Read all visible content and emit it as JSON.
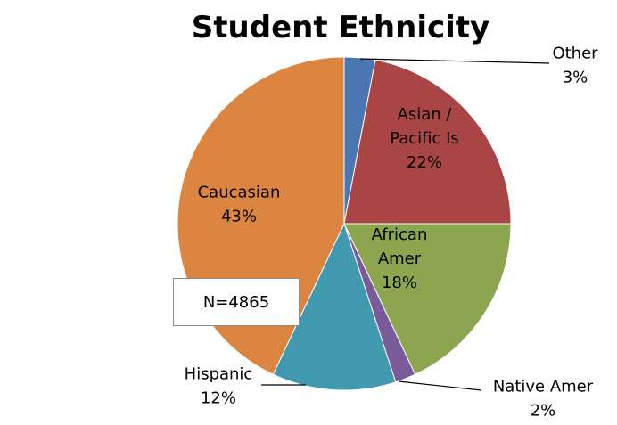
{
  "chart_data": {
    "type": "pie",
    "title": "Student Ethnicity",
    "slices": [
      {
        "name": "Other",
        "label_lines": [
          "Other"
        ],
        "value": 3,
        "pct_label": "3%",
        "color": "#4a76b1"
      },
      {
        "name": "Asian / Pacific Is",
        "label_lines": [
          "Asian /",
          "Pacific Is"
        ],
        "value": 22,
        "pct_label": "22%",
        "color": "#a94544"
      },
      {
        "name": "African Amer",
        "label_lines": [
          "African",
          "Amer"
        ],
        "value": 18,
        "pct_label": "18%",
        "color": "#8ca54f"
      },
      {
        "name": "Native Amer",
        "label_lines": [
          "Native Amer"
        ],
        "value": 2,
        "pct_label": "2%",
        "color": "#7a5a98"
      },
      {
        "name": "Hispanic",
        "label_lines": [
          "Hispanic"
        ],
        "value": 12,
        "pct_label": "12%",
        "color": "#4199b0"
      },
      {
        "name": "Caucasian",
        "label_lines": [
          "Caucasian"
        ],
        "value": 43,
        "pct_label": "43%",
        "color": "#db8540"
      }
    ]
  },
  "annotation": {
    "n_label": "N=4865"
  }
}
